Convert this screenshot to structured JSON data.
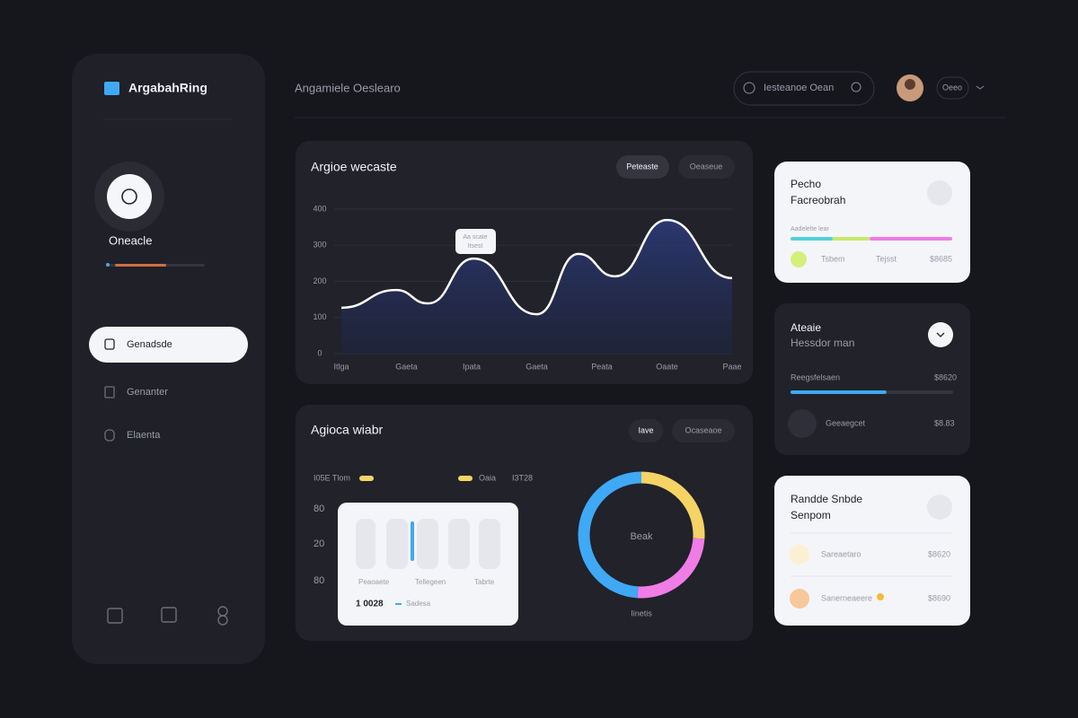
{
  "sidebar": {
    "brand": "ArgabahRing",
    "profile_name": "Oneacle",
    "nav": [
      "Genadsde",
      "Genanter",
      "Elaenta"
    ]
  },
  "header": {
    "title": "Angamiele Oeslearo",
    "search": "Iesteanoe Oean",
    "user": "Oeeo"
  },
  "line_chart": {
    "type": "line",
    "title": "Argioe wecaste",
    "tabs": [
      "Peteaste",
      "Oeaseue"
    ],
    "tooltip": [
      "Aa scate",
      "Itsest"
    ],
    "x": [
      0,
      0.84,
      1.33,
      2.03,
      3.0,
      3.64,
      4.2,
      5.0,
      6.0
    ],
    "values": [
      127,
      176,
      139,
      263,
      109,
      276,
      214,
      370,
      209
    ],
    "xlim": [
      0,
      6
    ],
    "xticks": [
      {
        "value": 0,
        "label": "Itlga"
      },
      {
        "value": 1,
        "label": "Gaeta"
      },
      {
        "value": 2,
        "label": "Ipata"
      },
      {
        "value": 3,
        "label": "Gaeta"
      },
      {
        "value": 4,
        "label": "Peata"
      },
      {
        "value": 5,
        "label": "Oaate"
      },
      {
        "value": 6,
        "label": "Paae"
      }
    ],
    "ylim": [
      0,
      400
    ],
    "yticks": [
      0,
      100,
      200,
      300,
      400
    ],
    "grid": true,
    "color": "#ffffff"
  },
  "bottom_card": {
    "title": "Agioca wiabr",
    "tabs": [
      "Iave",
      "Ocaseaoe"
    ],
    "legend": [
      "I05E Tlom",
      "Oaia",
      "I3T28"
    ],
    "axis_labels": [
      "80",
      "20",
      "80"
    ],
    "inner": {
      "labels": [
        "Peaoaete",
        "Tellegeen",
        "Tabrte"
      ],
      "total": "1 0028",
      "note": "Sadesa"
    }
  },
  "donut_chart": {
    "type": "donut",
    "center_label": "Beak",
    "caption": "Iinetis",
    "values": [
      26,
      25,
      49
    ],
    "colors": [
      "#f6d365",
      "#f07ce6",
      "#3fa9f5"
    ]
  },
  "cards": [
    {
      "title": "Pecho",
      "subtitle": "Facreobrah",
      "bar_label": "Aadelelte lear",
      "items": [
        "Tsbem",
        "Tejsst",
        "$8685"
      ]
    },
    {
      "title": "Ateaie",
      "subtitle": "Hessdor man",
      "progress_label": "Reegsfelsaen",
      "progress_value": "$8620",
      "progress": 59,
      "item": "Geeaegcet",
      "item_value": "$8.83"
    },
    {
      "title": "Randde Snbde",
      "subtitle": "Senpom",
      "rows": [
        [
          "Sareaetaro",
          "$8620"
        ],
        [
          "Sanerneaeere",
          "$8690"
        ]
      ]
    }
  ]
}
